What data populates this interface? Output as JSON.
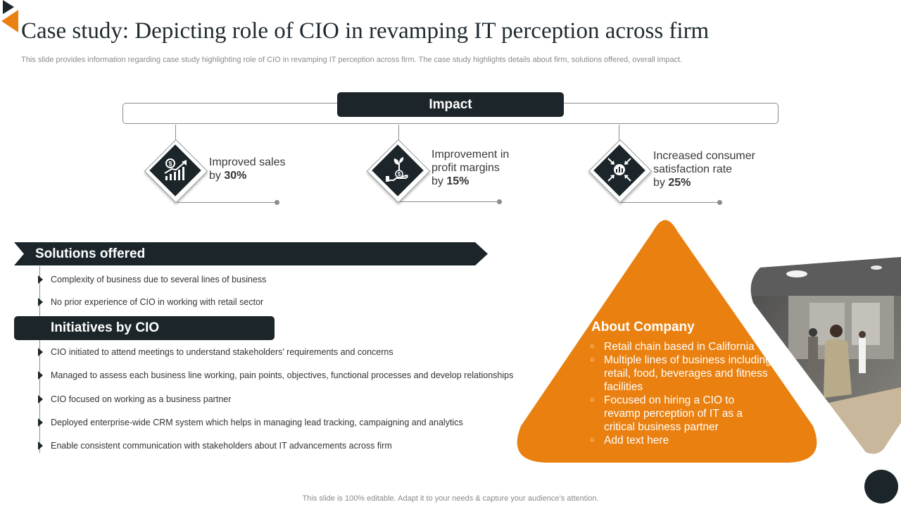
{
  "title": "Case study: Depicting role of CIO in revamping IT perception across firm",
  "subtitle": "This slide provides information regarding case study highlighting role of CIO in revamping IT perception across firm. The case study highlights details about firm, solutions offered, overall impact.",
  "impact": {
    "label": "Impact",
    "items": [
      {
        "icon": "sales-growth-icon",
        "line1": "Improved sales",
        "prefix": "by ",
        "value": "30%"
      },
      {
        "icon": "money-plant-icon",
        "line1": "Improvement in",
        "line2": "profit margins",
        "prefix": "by ",
        "value": "15%"
      },
      {
        "icon": "satisfaction-chart-icon",
        "line1": "Increased consumer",
        "line2": "satisfaction rate",
        "prefix": "by ",
        "value": "25%"
      }
    ]
  },
  "solutions": {
    "label": "Solutions offered",
    "items": [
      "Complexity of business due to several  lines of business",
      "No prior experience of CIO in working with retail sector"
    ]
  },
  "initiatives": {
    "label": "Initiatives by CIO",
    "items": [
      "CIO initiated to attend meetings to understand stakeholders’ requirements  and concerns",
      "Managed to assess each business line working, pain points, objectives, functional processes and develop  relationships",
      "CIO focused on working as a business partner",
      "Deployed enterprise-wide  CRM system which helps in managing lead tracking, campaigning and analytics",
      "Enable consistent communication with stakeholders about IT advancements  across firm"
    ]
  },
  "about": {
    "title": "About Company",
    "items": [
      "Retail chain based in California",
      "Multiple lines of business including retail, food, beverages and fitness facilities",
      "Focused on hiring a CIO to revamp perception of IT as a critical business partner",
      "Add text here"
    ]
  },
  "footer": "This slide is 100% editable. Adapt it to your needs & capture your audience’s attention.",
  "colors": {
    "dark": "#1b252a",
    "orange": "#e9800f",
    "gray": "#8c8c8c"
  }
}
